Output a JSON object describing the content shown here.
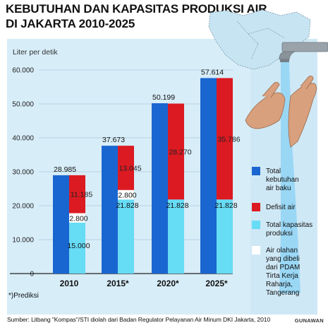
{
  "title_lines": [
    "KEBUTUHAN DAN KAPASITAS PRODUKSI AIR",
    "DI JAKARTA  2010-2025"
  ],
  "note": "*)Prediksi",
  "source": "Sumber: Litbang \"Kompas\"/STI diolah dari Badan Regulator Pelayanan Air Minum DKI Jakarta, 2010",
  "byline": "GUNAWAN",
  "colors": {
    "background_panel": "#cfe8f5",
    "total_need": "#1a66d0",
    "deficit": "#dc1a22",
    "capacity": "#66dcf5",
    "purchased": "#ffffff",
    "axis": "#222222"
  },
  "icons": [
    "faucet-icon",
    "hands-icon",
    "jakarta-map-icon"
  ],
  "chart_data": {
    "type": "bar",
    "ylabel": "Liter per detik",
    "ylim": [
      0,
      60000
    ],
    "yticks": [
      "0",
      "10.000",
      "20.000",
      "30.000",
      "40.000",
      "50.000",
      "60.000"
    ],
    "ytick_values": [
      0,
      10000,
      20000,
      30000,
      40000,
      50000,
      60000
    ],
    "categories": [
      "2010",
      "2015*",
      "2020*",
      "2025*"
    ],
    "series": [
      {
        "name": "Total kebutuhan air baku",
        "values": [
          28985,
          37673,
          50199,
          57614
        ],
        "labels": [
          "28.985",
          "37.673",
          "50.199",
          "57.614"
        ]
      },
      {
        "name": "Defisit air",
        "values": [
          11185,
          13045,
          28270,
          35786
        ],
        "labels": [
          "11.185",
          "13.045",
          "28.270",
          "35.786"
        ]
      },
      {
        "name": "Total kapasitas produksi",
        "values": [
          15000,
          21828,
          21828,
          21828
        ],
        "labels": [
          "15.000",
          "21.828",
          "21.828",
          "21.828"
        ]
      },
      {
        "name": "Air olahan yang dibeli dari PDAM Tirta Kerja Raharja, Tangerang",
        "values": [
          2800,
          2800,
          0,
          0
        ],
        "labels": [
          "2.800",
          "2.800",
          "",
          ""
        ]
      }
    ],
    "legend": [
      {
        "lines": [
          "Total",
          "kebutuhan",
          "air baku"
        ]
      },
      {
        "lines": [
          "Defisit air"
        ]
      },
      {
        "lines": [
          "Total kapasitas",
          "produksi"
        ]
      },
      {
        "lines": [
          "Air olahan",
          "yang dibeli",
          "dari PDAM",
          "Tirta Kerja",
          "Raharja,",
          "Tangerang"
        ]
      }
    ],
    "legend_position": "right"
  }
}
